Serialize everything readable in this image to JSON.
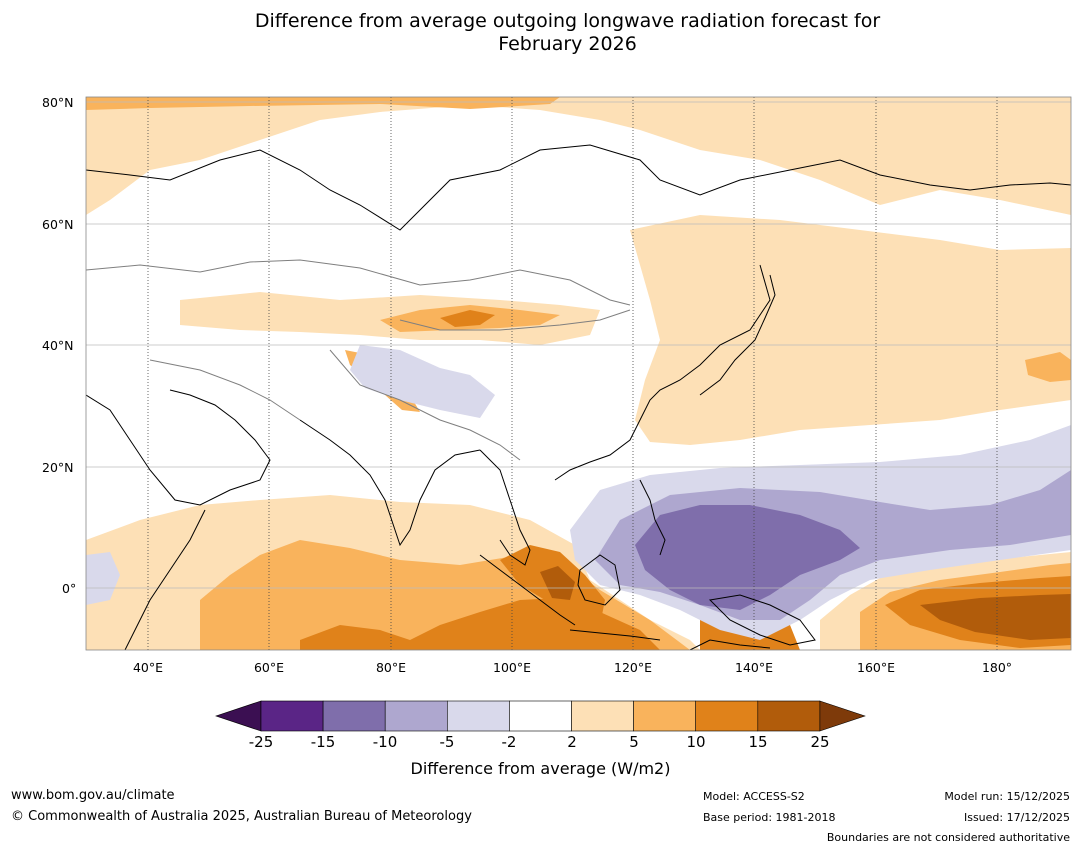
{
  "title": {
    "line1": "Difference from average outgoing longwave radiation forecast for",
    "line2": "February 2026"
  },
  "map": {
    "lat_labels": [
      "80°N",
      "60°N",
      "40°N",
      "20°N",
      "0°"
    ],
    "lon_labels": [
      "40°E",
      "60°E",
      "80°E",
      "100°E",
      "120°E",
      "140°E",
      "160°E",
      "180°"
    ],
    "extent": {
      "lon_min": 30,
      "lon_max": 192,
      "lat_min": -10,
      "lat_max": 81
    }
  },
  "colorbar": {
    "ticks": [
      "-25",
      "-15",
      "-10",
      "-5",
      "-2",
      "2",
      "5",
      "10",
      "15",
      "25"
    ],
    "colors": [
      "#3b0f52",
      "#5a2586",
      "#7f6eab",
      "#aea7cf",
      "#d9d9eb",
      "#ffffff",
      "#fde0b6",
      "#f9b35c",
      "#e0821a",
      "#b15c0b",
      "#7e3a0a"
    ],
    "label": "Difference from average (W/m2)"
  },
  "footer": {
    "website": "www.bom.gov.au/climate",
    "copyright": "© Commonwealth of Australia 2025, Australian Bureau of Meteorology",
    "model": "Model: ACCESS-S2",
    "base_period": "Base period: 1981-2018",
    "model_run": "Model run: 15/12/2025",
    "issued": "Issued: 17/12/2025",
    "disclaimer": "Boundaries are not considered authoritative"
  }
}
